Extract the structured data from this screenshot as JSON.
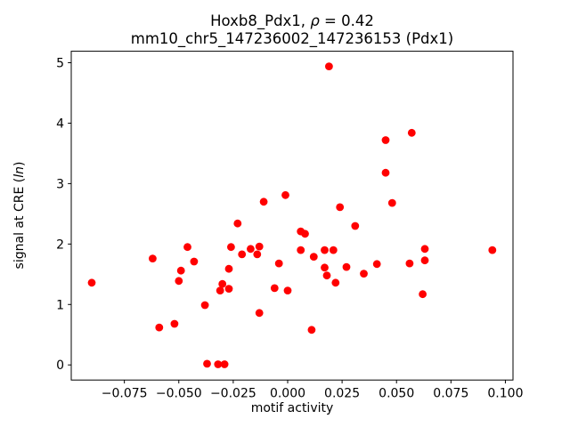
{
  "chart_data": {
    "type": "scatter",
    "title_line1": {
      "prefix": "Hoxb8_Pdx1, ",
      "rho": "ρ",
      "suffix": " = 0.42"
    },
    "title_line2": "mm10_chr5_147236002_147236153 (Pdx1)",
    "xlabel": "motif activity",
    "ylabel": {
      "prefix": "signal at CRE (",
      "italic": "ln",
      "suffix": ")"
    },
    "legend": null,
    "grid": false,
    "marker_color": "#ff0000",
    "marker_radius_px": 4.4,
    "xlim": [
      -0.0994,
      0.1035
    ],
    "ylim": [
      -0.25,
      5.19
    ],
    "x_ticks": [
      -0.075,
      -0.05,
      -0.025,
      0.0,
      0.025,
      0.05,
      0.075,
      0.1
    ],
    "x_tick_labels": [
      "−0.075",
      "−0.050",
      "−0.025",
      "0.000",
      "0.025",
      "0.050",
      "0.075",
      "0.100"
    ],
    "y_ticks": [
      0,
      1,
      2,
      3,
      4,
      5
    ],
    "y_tick_labels": [
      "0",
      "1",
      "2",
      "3",
      "4",
      "5"
    ],
    "points": [
      [
        -0.09,
        1.36
      ],
      [
        -0.062,
        1.76
      ],
      [
        -0.059,
        0.62
      ],
      [
        -0.052,
        0.68
      ],
      [
        -0.05,
        1.39
      ],
      [
        -0.049,
        1.56
      ],
      [
        -0.046,
        1.95
      ],
      [
        -0.043,
        1.71
      ],
      [
        -0.038,
        0.99
      ],
      [
        -0.037,
        0.02
      ],
      [
        -0.032,
        0.01
      ],
      [
        -0.029,
        0.01
      ],
      [
        -0.031,
        1.23
      ],
      [
        -0.03,
        1.34
      ],
      [
        -0.027,
        1.26
      ],
      [
        -0.027,
        1.59
      ],
      [
        -0.026,
        1.95
      ],
      [
        -0.023,
        2.34
      ],
      [
        -0.021,
        1.83
      ],
      [
        -0.017,
        1.92
      ],
      [
        -0.014,
        1.83
      ],
      [
        -0.013,
        1.96
      ],
      [
        -0.013,
        0.86
      ],
      [
        -0.011,
        2.7
      ],
      [
        -0.006,
        1.27
      ],
      [
        -0.004,
        1.68
      ],
      [
        -0.001,
        2.81
      ],
      [
        0.0,
        1.23
      ],
      [
        0.006,
        2.21
      ],
      [
        0.006,
        1.9
      ],
      [
        0.008,
        2.17
      ],
      [
        0.011,
        0.58
      ],
      [
        0.012,
        1.79
      ],
      [
        0.017,
        1.9
      ],
      [
        0.017,
        1.61
      ],
      [
        0.018,
        1.48
      ],
      [
        0.019,
        4.94
      ],
      [
        0.021,
        1.9
      ],
      [
        0.022,
        1.36
      ],
      [
        0.024,
        2.61
      ],
      [
        0.027,
        1.62
      ],
      [
        0.031,
        2.3
      ],
      [
        0.035,
        1.51
      ],
      [
        0.041,
        1.67
      ],
      [
        0.045,
        3.72
      ],
      [
        0.045,
        3.18
      ],
      [
        0.048,
        2.68
      ],
      [
        0.056,
        1.68
      ],
      [
        0.057,
        3.84
      ],
      [
        0.062,
        1.17
      ],
      [
        0.063,
        1.92
      ],
      [
        0.063,
        1.73
      ],
      [
        0.094,
        1.9
      ]
    ]
  }
}
